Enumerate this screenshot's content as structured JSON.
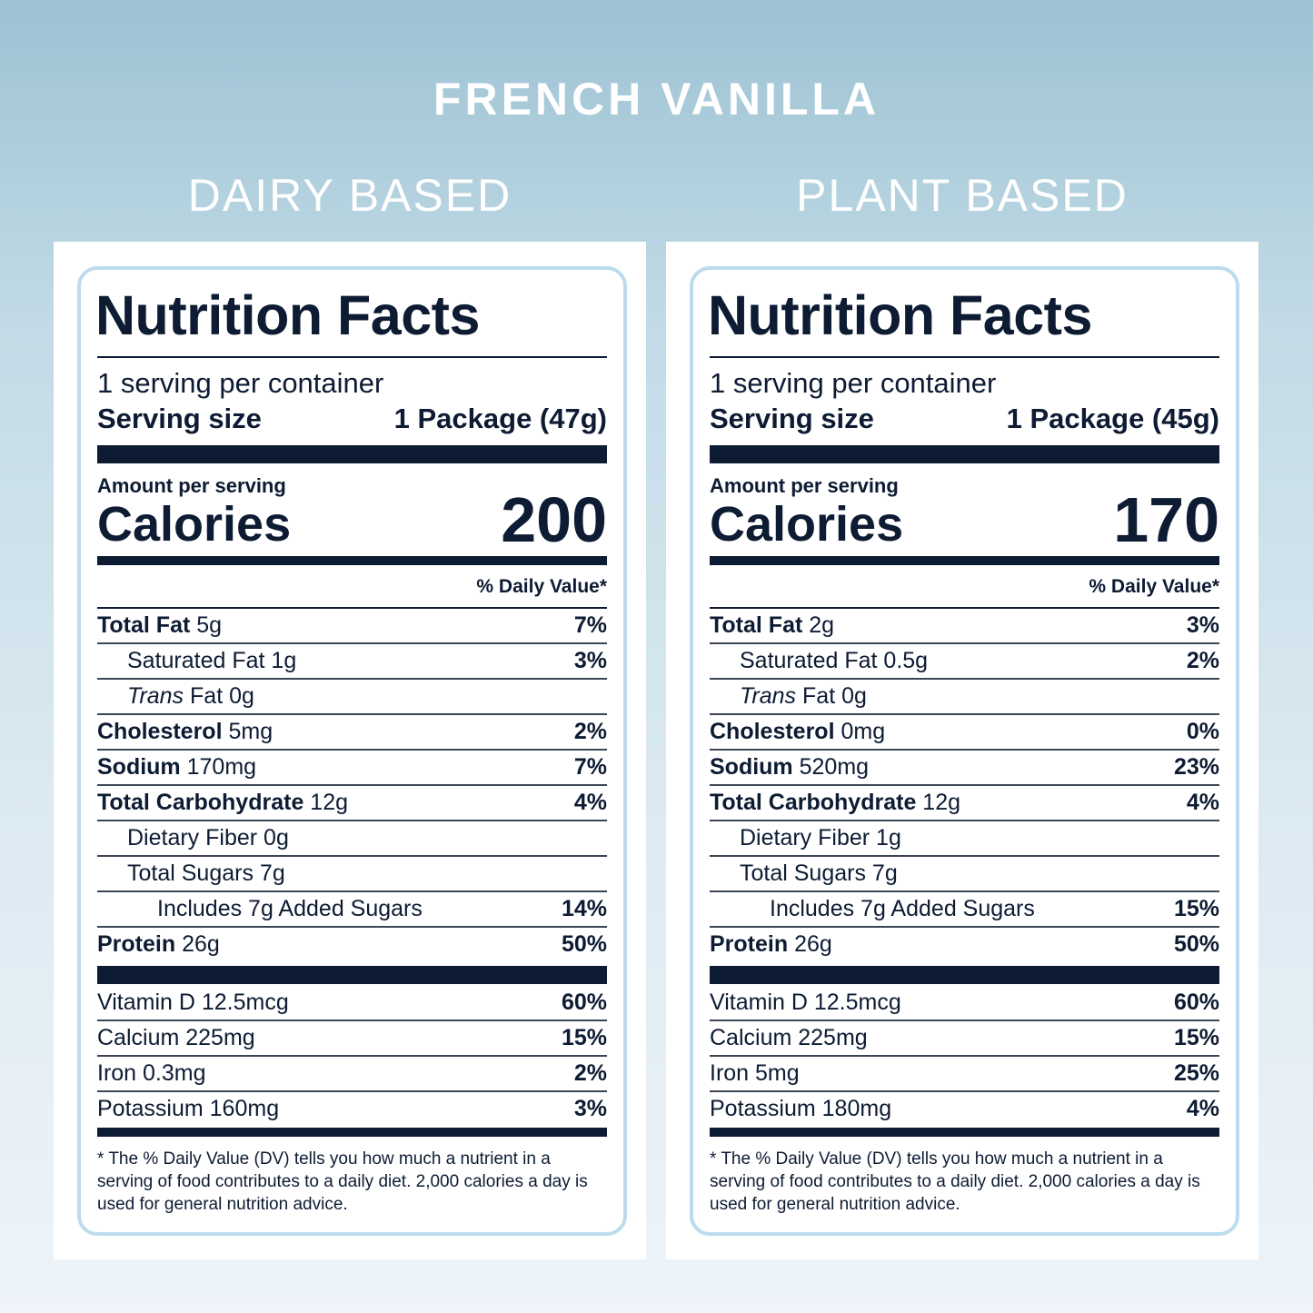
{
  "title": "FRENCH VANILLA",
  "labels": [
    {
      "heading": "DAIRY BASED",
      "title": "Nutrition Facts",
      "servings": "1 serving per container",
      "serving_size_label": "Serving size",
      "serving_size": "1 Package (47g)",
      "amount_label": "Amount per serving",
      "calories_label": "Calories",
      "calories": "200",
      "dv_header": "% Daily Value*",
      "nutrients": [
        {
          "level": 0,
          "bold": "Total Fat",
          "text": "5g",
          "dv": "7%"
        },
        {
          "level": 1,
          "text": "Saturated Fat 1g",
          "dv": "3%"
        },
        {
          "level": 1,
          "italic": "Trans",
          "text": "Fat 0g"
        },
        {
          "level": 0,
          "bold": "Cholesterol",
          "text": "5mg",
          "dv": "2%"
        },
        {
          "level": 0,
          "bold": "Sodium",
          "text": "170mg",
          "dv": "7%"
        },
        {
          "level": 0,
          "bold": "Total Carbohydrate",
          "text": "12g",
          "dv": "4%"
        },
        {
          "level": 1,
          "text": "Dietary Fiber 0g"
        },
        {
          "level": 1,
          "text": "Total Sugars 7g"
        },
        {
          "level": 2,
          "text": "Includes 7g Added Sugars",
          "dv": "14%"
        },
        {
          "level": 0,
          "bold": "Protein",
          "text": "26g",
          "dv": "50%"
        }
      ],
      "vitamins": [
        {
          "text": "Vitamin D 12.5mcg",
          "dv": "60%"
        },
        {
          "text": "Calcium 225mg",
          "dv": "15%"
        },
        {
          "text": "Iron 0.3mg",
          "dv": "2%"
        },
        {
          "text": "Potassium 160mg",
          "dv": "3%"
        }
      ],
      "footnote": "* The % Daily Value (DV) tells you how much a nutrient in a serving of food contributes to a daily diet. 2,000 calories a day is used for general nutrition advice."
    },
    {
      "heading": "PLANT BASED",
      "title": "Nutrition Facts",
      "servings": "1 serving per container",
      "serving_size_label": "Serving size",
      "serving_size": "1 Package (45g)",
      "amount_label": "Amount per serving",
      "calories_label": "Calories",
      "calories": "170",
      "dv_header": "% Daily Value*",
      "nutrients": [
        {
          "level": 0,
          "bold": "Total Fat",
          "text": "2g",
          "dv": "3%"
        },
        {
          "level": 1,
          "text": "Saturated Fat 0.5g",
          "dv": "2%"
        },
        {
          "level": 1,
          "italic": "Trans",
          "text": "Fat 0g"
        },
        {
          "level": 0,
          "bold": "Cholesterol",
          "text": "0mg",
          "dv": "0%"
        },
        {
          "level": 0,
          "bold": "Sodium",
          "text": "520mg",
          "dv": "23%"
        },
        {
          "level": 0,
          "bold": "Total Carbohydrate",
          "text": "12g",
          "dv": "4%"
        },
        {
          "level": 1,
          "text": "Dietary Fiber 1g"
        },
        {
          "level": 1,
          "text": "Total Sugars 7g"
        },
        {
          "level": 2,
          "text": "Includes 7g Added Sugars",
          "dv": "15%"
        },
        {
          "level": 0,
          "bold": "Protein",
          "text": "26g",
          "dv": "50%"
        }
      ],
      "vitamins": [
        {
          "text": "Vitamin D 12.5mcg",
          "dv": "60%"
        },
        {
          "text": "Calcium 225mg",
          "dv": "15%"
        },
        {
          "text": "Iron 5mg",
          "dv": "25%"
        },
        {
          "text": "Potassium 180mg",
          "dv": "4%"
        }
      ],
      "footnote": "* The % Daily Value (DV) tells you how much a nutrient in a serving of food contributes to a daily diet. 2,000 calories a day is used for general nutrition advice."
    }
  ]
}
